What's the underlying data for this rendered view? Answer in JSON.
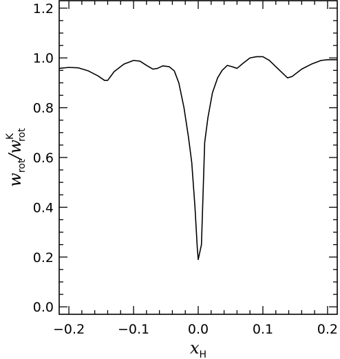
{
  "chart_data": {
    "type": "line",
    "title": "",
    "xlabel": {
      "main": "x",
      "sub": "H"
    },
    "ylabel": {
      "main": "w",
      "sub": "rot",
      "slash": "/",
      "sup": "K"
    },
    "xlim": [
      -0.215,
      0.215
    ],
    "ylim": [
      -0.03,
      1.23
    ],
    "x_ticks": [
      -0.2,
      -0.1,
      0.0,
      0.1,
      0.2
    ],
    "x_tick_labels": [
      "−0.2",
      "−0.1",
      "0.0",
      "0.1",
      "0.2"
    ],
    "y_ticks": [
      0.0,
      0.2,
      0.4,
      0.6,
      0.8,
      1.0,
      1.2
    ],
    "y_tick_labels": [
      "0.0",
      "0.2",
      "0.4",
      "0.6",
      "0.8",
      "1.0",
      "1.2"
    ],
    "x_minor_step": 0.02,
    "y_minor_step": 0.05,
    "grid": false,
    "series": [
      {
        "color": "#000000",
        "x": [
          -0.215,
          -0.2,
          -0.185,
          -0.17,
          -0.155,
          -0.145,
          -0.14,
          -0.13,
          -0.115,
          -0.1,
          -0.09,
          -0.08,
          -0.07,
          -0.063,
          -0.055,
          -0.045,
          -0.037,
          -0.03,
          -0.022,
          -0.015,
          -0.01,
          -0.005,
          -0.0015,
          0.0,
          0.005,
          0.01,
          0.015,
          0.022,
          0.03,
          0.037,
          0.045,
          0.052,
          0.06,
          0.07,
          0.08,
          0.09,
          0.1,
          0.11,
          0.12,
          0.13,
          0.138,
          0.145,
          0.16,
          0.175,
          0.19,
          0.2,
          0.215
        ],
        "y": [
          0.958,
          0.962,
          0.96,
          0.948,
          0.928,
          0.91,
          0.91,
          0.945,
          0.975,
          0.99,
          0.987,
          0.97,
          0.955,
          0.958,
          0.968,
          0.965,
          0.948,
          0.9,
          0.8,
          0.68,
          0.58,
          0.4,
          0.24,
          0.19,
          0.25,
          0.66,
          0.76,
          0.86,
          0.92,
          0.95,
          0.97,
          0.965,
          0.958,
          0.98,
          1.0,
          1.005,
          1.005,
          0.99,
          0.965,
          0.94,
          0.92,
          0.925,
          0.955,
          0.975,
          0.99,
          0.993,
          0.993
        ]
      }
    ]
  }
}
